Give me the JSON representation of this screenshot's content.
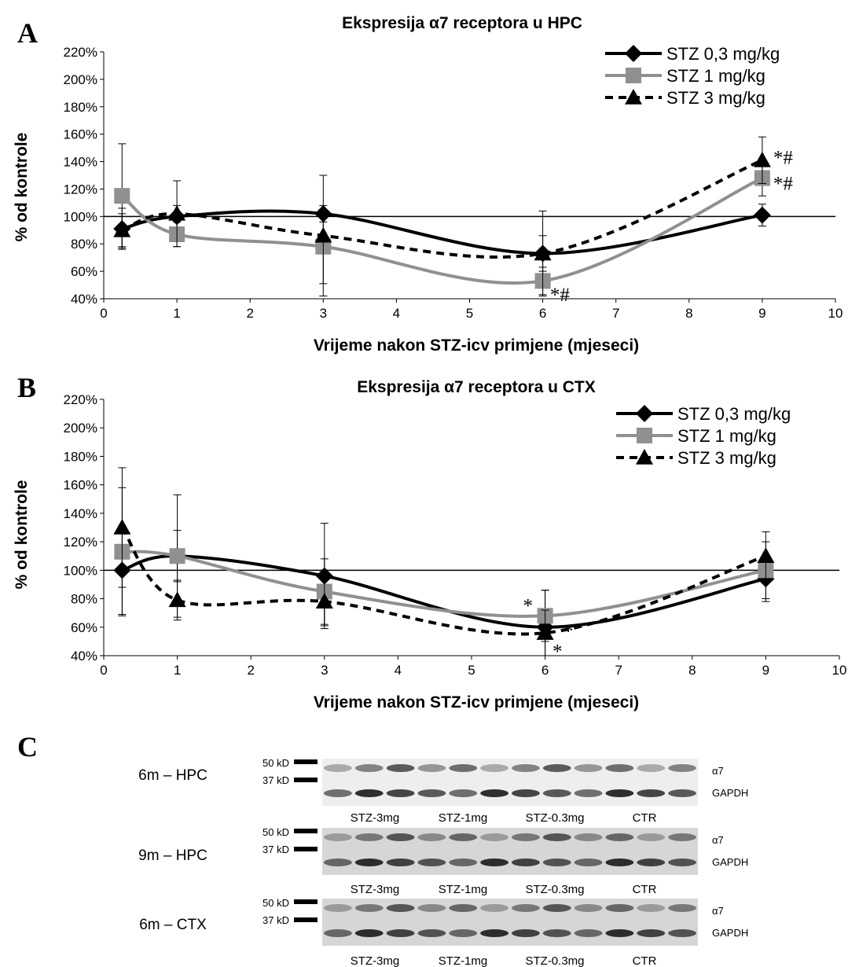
{
  "chart_data": [
    {
      "panel": "A",
      "type": "line",
      "title": "Ekspresija α7 receptora u HPC",
      "xlabel": "Vrijeme nakon STZ-icv primjene (mjeseci)",
      "ylabel": "% od kontrole",
      "xlim": [
        0,
        10
      ],
      "ylim": [
        40,
        220
      ],
      "x_ticks": [
        0,
        1,
        2,
        3,
        4,
        5,
        6,
        7,
        8,
        9,
        10
      ],
      "y_ticks": [
        "40%",
        "60%",
        "80%",
        "100%",
        "120%",
        "140%",
        "160%",
        "180%",
        "200%",
        "220%"
      ],
      "reference_line": 100,
      "legend_position": "top-right",
      "series": [
        {
          "name": "STZ 0,3 mg/kg",
          "color": "#000000",
          "dash": "solid",
          "marker": "diamond",
          "x": [
            0.25,
            1,
            3,
            6,
            9
          ],
          "y": [
            91,
            100,
            102,
            73,
            101
          ],
          "err": [
            15,
            8,
            6,
            13,
            8
          ]
        },
        {
          "name": "STZ 1 mg/kg",
          "color": "#909090",
          "dash": "solid",
          "marker": "square",
          "x": [
            0.25,
            1,
            3,
            6,
            9
          ],
          "y": [
            115,
            87,
            78,
            53,
            128
          ],
          "err": [
            38,
            9,
            27,
            10,
            13
          ]
        },
        {
          "name": "STZ 3 mg/kg",
          "color": "#000000",
          "dash": "dashed",
          "marker": "triangle",
          "x": [
            0.25,
            1,
            3,
            6,
            9
          ],
          "y": [
            90,
            102,
            86,
            73,
            141
          ],
          "err": [
            12,
            24,
            44,
            31,
            17
          ]
        }
      ],
      "annotations": [
        {
          "text": "*#",
          "x": 6.1,
          "y": 43
        },
        {
          "text": "*#",
          "x": 9.15,
          "y": 143
        },
        {
          "text": "*#",
          "x": 9.15,
          "y": 124
        }
      ]
    },
    {
      "panel": "B",
      "type": "line",
      "title": "Ekspresija α7 receptora u CTX",
      "xlabel": "Vrijeme nakon STZ-icv primjene (mjeseci)",
      "ylabel": "% od kontrole",
      "xlim": [
        0,
        10
      ],
      "ylim": [
        40,
        220
      ],
      "x_ticks": [
        0,
        1,
        2,
        3,
        4,
        5,
        6,
        7,
        8,
        9,
        10
      ],
      "y_ticks": [
        "40%",
        "60%",
        "80%",
        "100%",
        "120%",
        "140%",
        "160%",
        "180%",
        "200%",
        "220%"
      ],
      "reference_line": 100,
      "legend_position": "top-right",
      "series": [
        {
          "name": "STZ 0,3 mg/kg",
          "color": "#000000",
          "dash": "solid",
          "marker": "diamond",
          "x": [
            0.25,
            1,
            3,
            6,
            9
          ],
          "y": [
            100,
            110,
            96,
            60,
            94
          ],
          "err": [
            31,
            18,
            37,
            26,
            16
          ]
        },
        {
          "name": "STZ 1 mg/kg",
          "color": "#909090",
          "dash": "solid",
          "marker": "square",
          "x": [
            0.25,
            1,
            3,
            6,
            9
          ],
          "y": [
            113,
            110,
            85,
            68,
            100
          ],
          "err": [
            45,
            43,
            23,
            18,
            20
          ]
        },
        {
          "name": "STZ 3 mg/kg",
          "color": "#000000",
          "dash": "dashed",
          "marker": "triangle",
          "x": [
            0.25,
            1,
            3,
            6,
            9
          ],
          "y": [
            130,
            79,
            78,
            56,
            110
          ],
          "err": [
            42,
            14,
            17,
            16,
            17
          ]
        }
      ],
      "annotations": [
        {
          "text": "*",
          "x": 5.7,
          "y": 75
        },
        {
          "text": "*",
          "x": 6.25,
          "y": 57
        },
        {
          "text": "*",
          "x": 6.1,
          "y": 43
        }
      ]
    }
  ],
  "panels": {
    "a_letter": "A",
    "b_letter": "B",
    "c_letter": "C"
  },
  "blot": {
    "kd_50": "50 kD",
    "kd_37": "37 kD",
    "alpha7": "α7",
    "gapdh": "GAPDH",
    "rows": [
      {
        "label": "6m – HPC",
        "groups": [
          "STZ-3mg",
          "STZ-1mg",
          "STZ-0.3mg",
          "CTR"
        ]
      },
      {
        "label": "9m – HPC",
        "groups": [
          "STZ-3mg",
          "STZ-1mg",
          "STZ-0.3mg",
          "CTR"
        ]
      },
      {
        "label": "6m – CTX",
        "groups": [
          "STZ-3mg",
          "STZ-1mg",
          "STZ-0.3mg",
          "CTR"
        ]
      }
    ]
  }
}
